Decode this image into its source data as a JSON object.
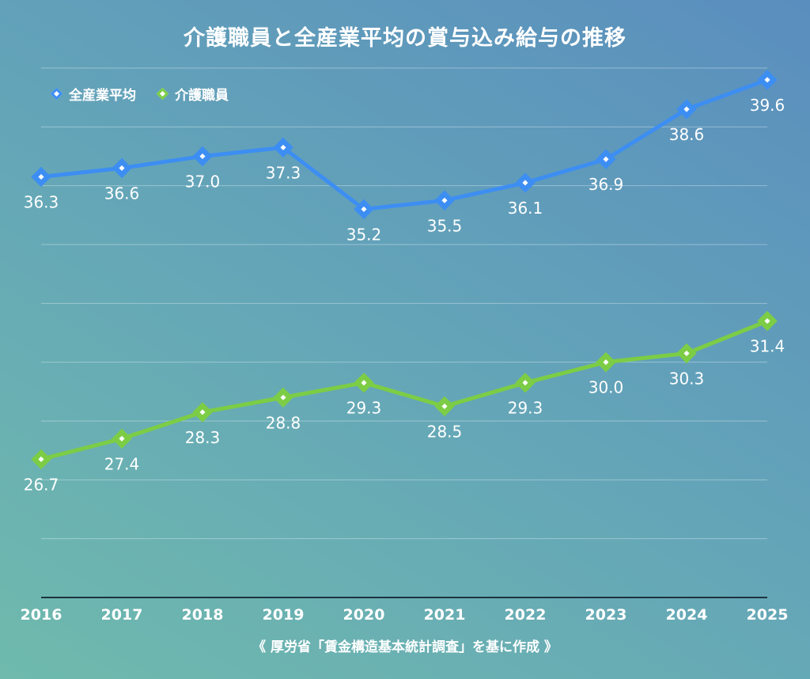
{
  "chart_data": {
    "type": "line",
    "title": "介護職員と全産業平均の賞与込み給与の推移",
    "x": [
      "2016",
      "2017",
      "2018",
      "2019",
      "2020",
      "2021",
      "2022",
      "2023",
      "2024",
      "2025"
    ],
    "series": [
      {
        "name": "全産業平均",
        "color": "#3d8ef2",
        "values": [
          36.3,
          36.6,
          37.0,
          37.3,
          35.2,
          35.5,
          36.1,
          36.9,
          38.6,
          39.6
        ]
      },
      {
        "name": "介護職員",
        "color": "#7ccd45",
        "values": [
          26.7,
          27.4,
          28.3,
          28.8,
          29.3,
          28.5,
          29.3,
          30.0,
          30.3,
          31.4
        ]
      }
    ],
    "ylim": [
      22,
      40
    ],
    "gridlines": [
      24,
      26,
      28,
      30,
      32,
      34,
      36,
      38,
      40
    ],
    "grid": true,
    "legend": "top-left",
    "xlabel": "",
    "ylabel": ""
  },
  "footnote": "《 厚労省「賃金構造基本統計調査」を基に作成 》"
}
